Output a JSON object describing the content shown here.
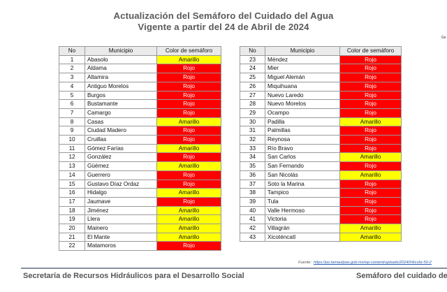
{
  "title_line1": "Actualización del Semáforo del Cuidado del Agua",
  "title_line2": "Vigente a partir del 24 de Abril de 2024",
  "corner_text": "Ge",
  "headers": {
    "no": "No",
    "municipio": "Municipio",
    "color": "Color de semáforo"
  },
  "colors": {
    "Rojo": "#ff0000",
    "Amarillo": "#ffff00"
  },
  "left_table": [
    {
      "no": "1",
      "municipio": "Abasolo",
      "color": "Amarillo"
    },
    {
      "no": "2",
      "municipio": "Aldama",
      "color": "Rojo"
    },
    {
      "no": "3",
      "municipio": "Altamira",
      "color": "Rojo"
    },
    {
      "no": "4",
      "municipio": "Antiguo Morelos",
      "color": "Rojo"
    },
    {
      "no": "5",
      "municipio": "Burgos",
      "color": "Rojo"
    },
    {
      "no": "6",
      "municipio": "Bustamante",
      "color": "Rojo"
    },
    {
      "no": "7",
      "municipio": "Camargo",
      "color": "Rojo"
    },
    {
      "no": "8",
      "municipio": "Casas",
      "color": "Amarillo"
    },
    {
      "no": "9",
      "municipio": "Ciudad Madero",
      "color": "Rojo"
    },
    {
      "no": "10",
      "municipio": "Cruillas",
      "color": "Rojo"
    },
    {
      "no": "11",
      "municipio": "Gómez Farías",
      "color": "Amarillo"
    },
    {
      "no": "12",
      "municipio": "González",
      "color": "Rojo"
    },
    {
      "no": "13",
      "municipio": "Güémez",
      "color": "Amarillo"
    },
    {
      "no": "14",
      "municipio": "Guerrero",
      "color": "Rojo"
    },
    {
      "no": "15",
      "municipio": "Gustavo Díaz Ordaz",
      "color": "Rojo"
    },
    {
      "no": "16",
      "municipio": "Hidalgo",
      "color": "Amarillo"
    },
    {
      "no": "17",
      "municipio": "Jaumave",
      "color": "Rojo"
    },
    {
      "no": "18",
      "municipio": "Jiménez",
      "color": "Amarillo"
    },
    {
      "no": "19",
      "municipio": "Llera",
      "color": "Amarillo"
    },
    {
      "no": "20",
      "municipio": "Mainero",
      "color": "Amarillo"
    },
    {
      "no": "21",
      "municipio": "El Mante",
      "color": "Amarillo"
    },
    {
      "no": "22",
      "municipio": "Matamoros",
      "color": "Rojo"
    }
  ],
  "right_table": [
    {
      "no": "23",
      "municipio": "Méndez",
      "color": "Rojo"
    },
    {
      "no": "24",
      "municipio": "Mier",
      "color": "Rojo"
    },
    {
      "no": "25",
      "municipio": "Miguel Alemán",
      "color": "Rojo"
    },
    {
      "no": "26",
      "municipio": "Miquihuana",
      "color": "Rojo"
    },
    {
      "no": "27",
      "municipio": "Nuevo Laredo",
      "color": "Rojo"
    },
    {
      "no": "28",
      "municipio": "Nuevo Morelos",
      "color": "Rojo"
    },
    {
      "no": "29",
      "municipio": "Ocampo",
      "color": "Rojo"
    },
    {
      "no": "30",
      "municipio": "Padilla",
      "color": "Amarillo"
    },
    {
      "no": "31",
      "municipio": "Palmillas",
      "color": "Rojo"
    },
    {
      "no": "32",
      "municipio": "Reynosa",
      "color": "Rojo"
    },
    {
      "no": "33",
      "municipio": "Río Bravo",
      "color": "Rojo"
    },
    {
      "no": "34",
      "municipio": "San Carlos",
      "color": "Amarillo"
    },
    {
      "no": "35",
      "municipio": "San Fernando",
      "color": "Rojo"
    },
    {
      "no": "36",
      "municipio": "San Nicolás",
      "color": "Amarillo"
    },
    {
      "no": "37",
      "municipio": "Soto la Marina",
      "color": "Rojo"
    },
    {
      "no": "38",
      "municipio": "Tampico",
      "color": "Rojo"
    },
    {
      "no": "39",
      "municipio": "Tula",
      "color": "Rojo"
    },
    {
      "no": "40",
      "municipio": "Valle Hermoso",
      "color": "Rojo"
    },
    {
      "no": "41",
      "municipio": "Victoria",
      "color": "Rojo"
    },
    {
      "no": "42",
      "municipio": "Villagrán",
      "color": "Amarillo"
    },
    {
      "no": "43",
      "municipio": "Xicoténcatl",
      "color": "Amarillo"
    }
  ],
  "source_label": "Fuente:",
  "source_link": "https://po.tamaulipas.gob.mx/wp-content/uploads/2024/04/cxlix-50-2",
  "footer_left": "Secretaría de Recursos Hidráulicos para el Desarrollo Social",
  "footer_right": "Semáforo del cuidado del"
}
